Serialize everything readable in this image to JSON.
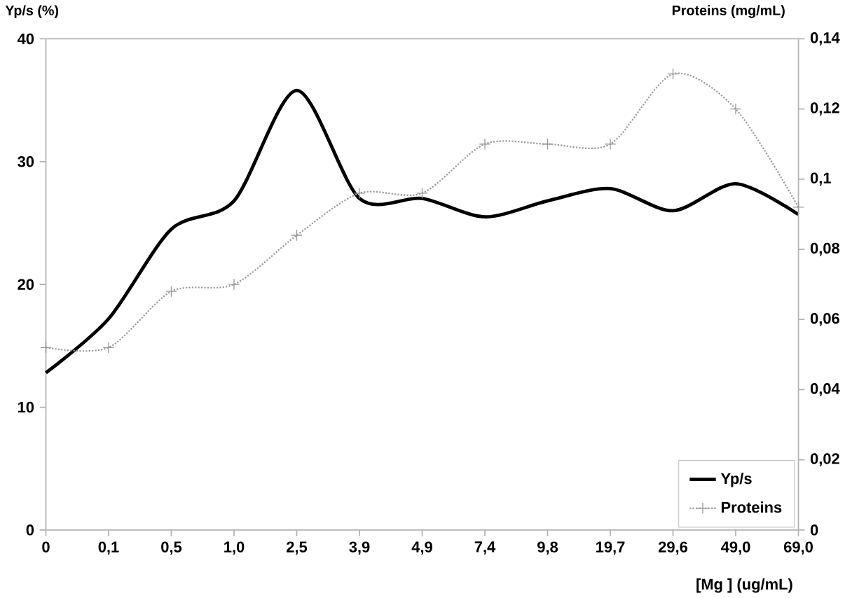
{
  "chart_data": {
    "type": "line",
    "categories": [
      "0",
      "0,1",
      "0,5",
      "1,0",
      "2,5",
      "3,9",
      "4,9",
      "7,4",
      "9,8",
      "19,7",
      "29,6",
      "49,0",
      "69,0"
    ],
    "xlabel": "[Mg  ] (ug/mL)",
    "ylabel": "Yp/s (%)",
    "y2label": "Proteins (mg/mL)",
    "ylim": [
      0,
      40
    ],
    "yticks": [
      0,
      10,
      20,
      30,
      40
    ],
    "y2lim": [
      0,
      0.14
    ],
    "y2ticks": [
      {
        "value": 0,
        "label": "0"
      },
      {
        "value": 0.02,
        "label": "0,02"
      },
      {
        "value": 0.04,
        "label": "0,04"
      },
      {
        "value": 0.06,
        "label": "0,06"
      },
      {
        "value": 0.08,
        "label": "0,08"
      },
      {
        "value": 0.1,
        "label": "0,1"
      },
      {
        "value": 0.12,
        "label": "0,12"
      },
      {
        "value": 0.14,
        "label": "0,14"
      }
    ],
    "legend": "bottom right",
    "series": [
      {
        "name": "Yp/s",
        "color": "#000000",
        "marker": "none",
        "line_style": "solid",
        "values": [
          12.8,
          17.2,
          24.5,
          26.8,
          35.8,
          27.0,
          27.0,
          25.5,
          26.8,
          27.8,
          26.0,
          28.2,
          25.7
        ]
      },
      {
        "name": "Proteins",
        "color": "#999999",
        "marker": "cross",
        "line_style": "dotted",
        "axis": "y2",
        "values": [
          0.052,
          0.052,
          0.068,
          0.07,
          0.084,
          0.096,
          0.096,
          0.11,
          0.11,
          0.11,
          0.13,
          0.12,
          0.092
        ]
      }
    ]
  }
}
